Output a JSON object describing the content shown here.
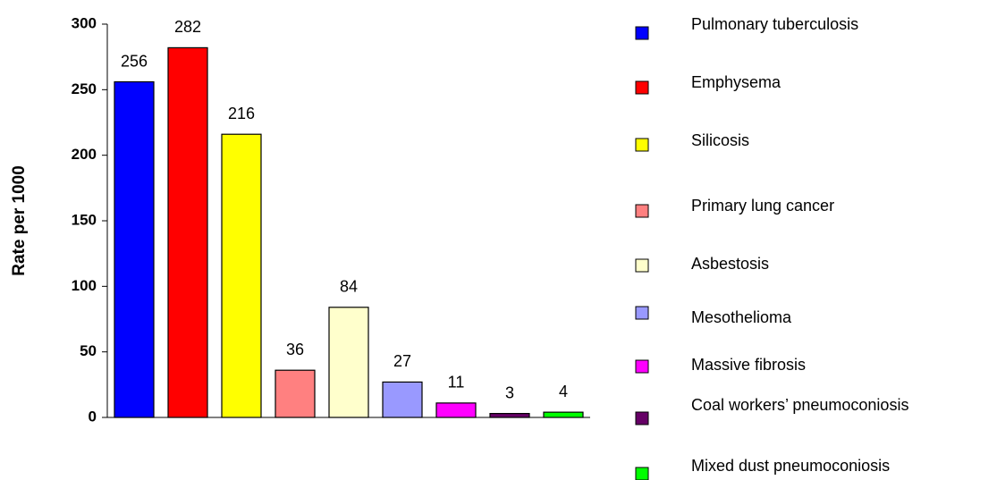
{
  "chart_data": {
    "type": "bar",
    "ylabel": "Rate per 1000",
    "categories": [
      "Pulmonary tuberculosis",
      "Emphysema",
      "Silicosis",
      "Primary lung cancer",
      "Asbestosis",
      "Mesothelioma",
      "Massive fibrosis",
      "Coal workers’ pneumoconiosis",
      "Mixed dust pneumoconiosis"
    ],
    "values": [
      256,
      282,
      216,
      36,
      84,
      27,
      11,
      3,
      4
    ],
    "colors": [
      "#0000ff",
      "#ff0000",
      "#ffff00",
      "#ff8080",
      "#ffffcc",
      "#9999ff",
      "#ff00ff",
      "#660066",
      "#00ff00"
    ],
    "ylim": [
      0,
      300
    ],
    "yticks": [
      0,
      50,
      100,
      150,
      200,
      250,
      300
    ],
    "legend": "right"
  }
}
